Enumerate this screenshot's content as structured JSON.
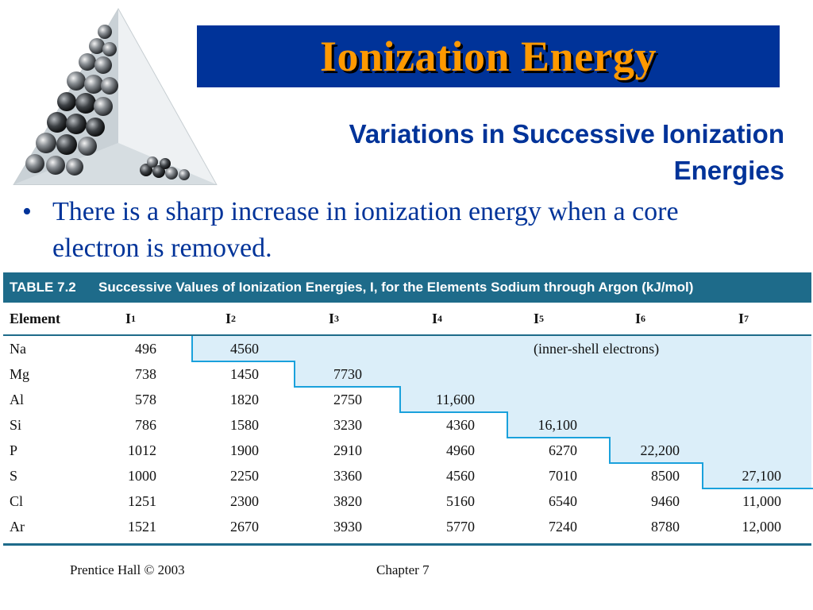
{
  "title": "Ionization Energy",
  "subtitle_line1": "Variations in Successive Ionization",
  "subtitle_line2": "Energies",
  "bullet": "There is a sharp increase in ionization energy when a core electron is removed.",
  "table": {
    "label": "TABLE 7.2",
    "caption": "Successive Values of Ionization Energies, I, for the Elements Sodium through Argon (kJ/mol)",
    "element_header": "Element",
    "columns": [
      "I1",
      "I2",
      "I3",
      "I4",
      "I5",
      "I6",
      "I7"
    ],
    "inner_shell_note": "(inner-shell electrons)",
    "rows": [
      {
        "element": "Na",
        "values": [
          "496",
          "4560",
          "",
          "",
          "",
          "",
          ""
        ]
      },
      {
        "element": "Mg",
        "values": [
          "738",
          "1450",
          "7730",
          "",
          "",
          "",
          ""
        ]
      },
      {
        "element": "Al",
        "values": [
          "578",
          "1820",
          "2750",
          "11,600",
          "",
          "",
          ""
        ]
      },
      {
        "element": "Si",
        "values": [
          "786",
          "1580",
          "3230",
          "4360",
          "16,100",
          "",
          ""
        ]
      },
      {
        "element": "P",
        "values": [
          "1012",
          "1900",
          "2910",
          "4960",
          "6270",
          "22,200",
          ""
        ]
      },
      {
        "element": "S",
        "values": [
          "1000",
          "2250",
          "3360",
          "4560",
          "7010",
          "8500",
          "27,100"
        ]
      },
      {
        "element": "Cl",
        "values": [
          "1251",
          "2300",
          "3820",
          "5160",
          "6540",
          "9460",
          "11,000"
        ]
      },
      {
        "element": "Ar",
        "values": [
          "1521",
          "2670",
          "3930",
          "5770",
          "7240",
          "8780",
          "12,000"
        ]
      }
    ]
  },
  "footer": {
    "left": "Prentice Hall © 2003",
    "center": "Chapter 7"
  },
  "colors": {
    "title_bg": "#003399",
    "title_text": "#ff9900",
    "accent_text": "#003399",
    "table_header": "#1e6b8a",
    "shade": "#dbeef9",
    "step_line": "#1aa1dc"
  }
}
